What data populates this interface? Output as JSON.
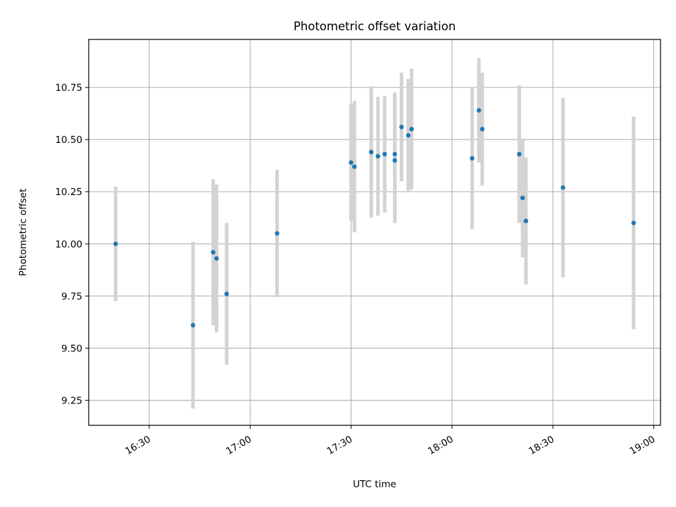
{
  "chart_data": {
    "type": "scatter",
    "title": "Photometric offset variation",
    "xlabel": "UTC time",
    "ylabel": "Photometric offset",
    "x_ticks": [
      "16:30",
      "17:00",
      "17:30",
      "18:00",
      "18:30",
      "19:00"
    ],
    "y_ticks": [
      "9.25",
      "9.50",
      "9.75",
      "10.00",
      "10.25",
      "10.50",
      "10.75"
    ],
    "x_tick_times": [
      "16:30",
      "17:00",
      "17:30",
      "18:00",
      "18:30",
      "19:00"
    ],
    "y_tick_values": [
      9.25,
      9.5,
      9.75,
      10.0,
      10.25,
      10.5,
      10.75
    ],
    "xlim": [
      "16:12",
      "19:02"
    ],
    "ylim": [
      9.13,
      10.98
    ],
    "grid": true,
    "point_color": "#1f77b4",
    "errorbar_color": "#d3d3d3",
    "series": [
      {
        "points": [
          {
            "x": "16:20",
            "y": 10.0,
            "err": 0.275
          },
          {
            "x": "16:43",
            "y": 9.61,
            "err": 0.4
          },
          {
            "x": "16:49",
            "y": 9.96,
            "err": 0.35
          },
          {
            "x": "16:50",
            "y": 9.93,
            "err": 0.355
          },
          {
            "x": "16:53",
            "y": 9.76,
            "err": 0.34
          },
          {
            "x": "17:08",
            "y": 10.05,
            "err": 0.305
          },
          {
            "x": "17:30",
            "y": 10.39,
            "err": 0.28
          },
          {
            "x": "17:31",
            "y": 10.37,
            "err": 0.315
          },
          {
            "x": "17:36",
            "y": 10.44,
            "err": 0.31
          },
          {
            "x": "17:36",
            "y": 10.44,
            "err": 0.315
          },
          {
            "x": "17:38",
            "y": 10.42,
            "err": 0.285
          },
          {
            "x": "17:40",
            "y": 10.43,
            "err": 0.28
          },
          {
            "x": "17:43",
            "y": 10.4,
            "err": 0.3
          },
          {
            "x": "17:43",
            "y": 10.43,
            "err": 0.295
          },
          {
            "x": "17:45",
            "y": 10.56,
            "err": 0.26
          },
          {
            "x": "17:47",
            "y": 10.52,
            "err": 0.27
          },
          {
            "x": "17:48",
            "y": 10.55,
            "err": 0.29
          },
          {
            "x": "18:06",
            "y": 10.41,
            "err": 0.34
          },
          {
            "x": "18:08",
            "y": 10.64,
            "err": 0.25
          },
          {
            "x": "18:09",
            "y": 10.55,
            "err": 0.27
          },
          {
            "x": "18:20",
            "y": 10.43,
            "err": 0.33
          },
          {
            "x": "18:21",
            "y": 10.22,
            "err": 0.285
          },
          {
            "x": "18:22",
            "y": 10.11,
            "err": 0.305
          },
          {
            "x": "18:33",
            "y": 10.27,
            "err": 0.43
          },
          {
            "x": "18:54",
            "y": 10.1,
            "err": 0.51
          }
        ]
      }
    ]
  }
}
